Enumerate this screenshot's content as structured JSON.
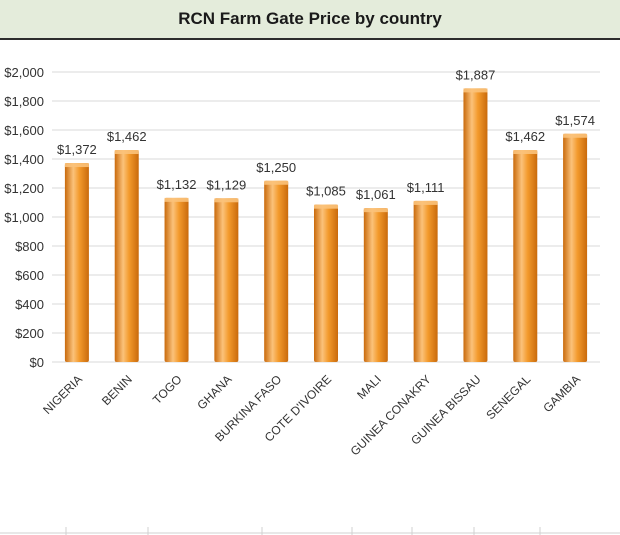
{
  "chart_data": {
    "type": "bar",
    "title": "RCN Farm Gate Price by country",
    "xlabel": "",
    "ylabel": "",
    "categories": [
      "NIGERIA",
      "BENIN",
      "TOGO",
      "GHANA",
      "BURKINA FASO",
      "COTE D'IVOIRE",
      "MALI",
      "GUINEA CONAKRY",
      "GUINEA BISSAU",
      "SENEGAL",
      "GAMBIA"
    ],
    "values": [
      1372,
      1462,
      1132,
      1129,
      1250,
      1085,
      1061,
      1111,
      1887,
      1462,
      1574
    ],
    "data_labels": [
      "$1,372",
      "$1,462",
      "$1,132",
      "$1,129",
      "$1,250",
      "$1,085",
      "$1,061",
      "$1,111",
      "$1,887",
      "$1,462",
      "$1,574"
    ],
    "yticks": [
      0,
      200,
      400,
      600,
      800,
      1000,
      1200,
      1400,
      1600,
      1800,
      2000
    ],
    "ytick_labels": [
      "$0",
      "$200",
      "$400",
      "$600",
      "$800",
      "$1,000",
      "$1,200",
      "$1,400",
      "$1,600",
      "$1,800",
      "$2,000"
    ],
    "ylim": [
      0,
      2000
    ],
    "grid": true,
    "legend": "none",
    "colors": {
      "bar": "#f08c1e",
      "bar_highlight": "#fbc27a",
      "bar_dark": "#c96a0c",
      "grid": "#d9d9d9",
      "title_bg": "#e4ecdb"
    }
  }
}
